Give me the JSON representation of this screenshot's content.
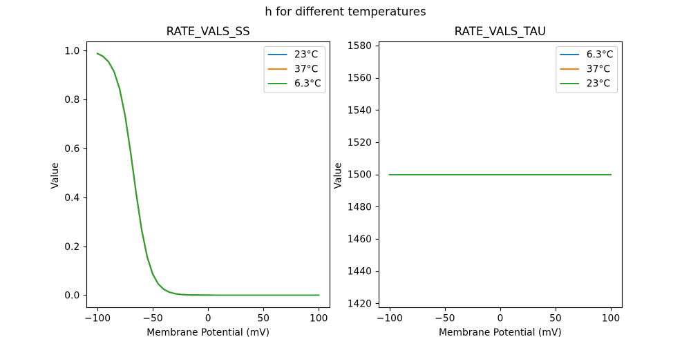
{
  "figure": {
    "suptitle": "h for different temperatures",
    "background": "#ffffff",
    "text_color": "#000000",
    "spine_color": "#000000",
    "legend_border_color": "#cccccc",
    "legend_background": "#ffffff"
  },
  "chart_data": [
    {
      "type": "line",
      "title": "RATE_VALS_SS",
      "xlabel": "Membrane Potential (mV)",
      "ylabel": "Value",
      "xlim": [
        -110,
        110
      ],
      "ylim": [
        -0.049389,
        1.037163
      ],
      "grid": false,
      "legend_position": "upper right",
      "xticks": {
        "values": [
          -100,
          -50,
          0,
          50,
          100
        ],
        "labels": [
          "−100",
          "−50",
          "0",
          "50",
          "100"
        ]
      },
      "yticks": {
        "values": [
          0.0,
          0.2,
          0.4,
          0.6,
          0.8,
          1.0
        ],
        "labels": [
          "0.0",
          "0.2",
          "0.4",
          "0.6",
          "0.8",
          "1.0"
        ]
      },
      "x": [
        -100,
        -95,
        -90,
        -85,
        -80,
        -75,
        -70,
        -65,
        -60,
        -55,
        -50,
        -45,
        -40,
        -35,
        -30,
        -25,
        -20,
        -15,
        -10,
        -5,
        0,
        5,
        10,
        15,
        20,
        25,
        30,
        35,
        40,
        45,
        50,
        55,
        60,
        65,
        70,
        75,
        80,
        85,
        90,
        95,
        100
      ],
      "series": [
        {
          "name": "23°C",
          "color": "#1f77b4",
          "values": [
            0.987774,
            0.976252,
            0.954372,
            0.914109,
            0.844118,
            0.733707,
            0.583665,
            0.416335,
            0.266293,
            0.155882,
            0.085891,
            0.045628,
            0.023748,
            0.012226,
            0.006258,
            0.003194,
            0.001628,
            0.000829,
            0.000422,
            0.000215,
            0.000109,
            5.6e-05,
            2.8e-05,
            1.4e-05,
            7e-06,
            4e-06,
            2e-06,
            1e-06,
            0,
            0,
            0,
            0,
            0,
            0,
            0,
            0,
            0,
            0,
            0,
            0,
            0
          ]
        },
        {
          "name": "37°C",
          "color": "#ff7f0e",
          "values": [
            0.987774,
            0.976252,
            0.954372,
            0.914109,
            0.844118,
            0.733707,
            0.583665,
            0.416335,
            0.266293,
            0.155882,
            0.085891,
            0.045628,
            0.023748,
            0.012226,
            0.006258,
            0.003194,
            0.001628,
            0.000829,
            0.000422,
            0.000215,
            0.000109,
            5.6e-05,
            2.8e-05,
            1.4e-05,
            7e-06,
            4e-06,
            2e-06,
            1e-06,
            0,
            0,
            0,
            0,
            0,
            0,
            0,
            0,
            0,
            0,
            0,
            0,
            0
          ]
        },
        {
          "name": "6.3°C",
          "color": "#2ca02c",
          "values": [
            0.987774,
            0.976252,
            0.954372,
            0.914109,
            0.844118,
            0.733707,
            0.583665,
            0.416335,
            0.266293,
            0.155882,
            0.085891,
            0.045628,
            0.023748,
            0.012226,
            0.006258,
            0.003194,
            0.001628,
            0.000829,
            0.000422,
            0.000215,
            0.000109,
            5.6e-05,
            2.8e-05,
            1.4e-05,
            7e-06,
            4e-06,
            2e-06,
            1e-06,
            0,
            0,
            0,
            0,
            0,
            0,
            0,
            0,
            0,
            0,
            0,
            0,
            0
          ]
        }
      ]
    },
    {
      "type": "line",
      "title": "RATE_VALS_TAU",
      "xlabel": "Membrane Potential (mV)",
      "ylabel": "Value",
      "xlim": [
        -110,
        110
      ],
      "ylim": [
        1417.5,
        1582.5
      ],
      "grid": false,
      "legend_position": "upper right",
      "xticks": {
        "values": [
          -100,
          -50,
          0,
          50,
          100
        ],
        "labels": [
          "−100",
          "−50",
          "0",
          "50",
          "100"
        ]
      },
      "yticks": {
        "values": [
          1420,
          1440,
          1460,
          1480,
          1500,
          1520,
          1540,
          1560,
          1580
        ],
        "labels": [
          "1420",
          "1440",
          "1460",
          "1480",
          "1500",
          "1520",
          "1540",
          "1560",
          "1580"
        ]
      },
      "x": [
        -100,
        -95,
        -90,
        -85,
        -80,
        -75,
        -70,
        -65,
        -60,
        -55,
        -50,
        -45,
        -40,
        -35,
        -30,
        -25,
        -20,
        -15,
        -10,
        -5,
        0,
        5,
        10,
        15,
        20,
        25,
        30,
        35,
        40,
        45,
        50,
        55,
        60,
        65,
        70,
        75,
        80,
        85,
        90,
        95,
        100
      ],
      "series": [
        {
          "name": "6.3°C",
          "color": "#1f77b4",
          "values": [
            1500,
            1500,
            1500,
            1500,
            1500,
            1500,
            1500,
            1500,
            1500,
            1500,
            1500,
            1500,
            1500,
            1500,
            1500,
            1500,
            1500,
            1500,
            1500,
            1500,
            1500,
            1500,
            1500,
            1500,
            1500,
            1500,
            1500,
            1500,
            1500,
            1500,
            1500,
            1500,
            1500,
            1500,
            1500,
            1500,
            1500,
            1500,
            1500,
            1500,
            1500
          ]
        },
        {
          "name": "37°C",
          "color": "#ff7f0e",
          "values": [
            1500,
            1500,
            1500,
            1500,
            1500,
            1500,
            1500,
            1500,
            1500,
            1500,
            1500,
            1500,
            1500,
            1500,
            1500,
            1500,
            1500,
            1500,
            1500,
            1500,
            1500,
            1500,
            1500,
            1500,
            1500,
            1500,
            1500,
            1500,
            1500,
            1500,
            1500,
            1500,
            1500,
            1500,
            1500,
            1500,
            1500,
            1500,
            1500,
            1500,
            1500
          ]
        },
        {
          "name": "23°C",
          "color": "#2ca02c",
          "values": [
            1500,
            1500,
            1500,
            1500,
            1500,
            1500,
            1500,
            1500,
            1500,
            1500,
            1500,
            1500,
            1500,
            1500,
            1500,
            1500,
            1500,
            1500,
            1500,
            1500,
            1500,
            1500,
            1500,
            1500,
            1500,
            1500,
            1500,
            1500,
            1500,
            1500,
            1500,
            1500,
            1500,
            1500,
            1500,
            1500,
            1500,
            1500,
            1500,
            1500,
            1500
          ]
        }
      ]
    }
  ]
}
